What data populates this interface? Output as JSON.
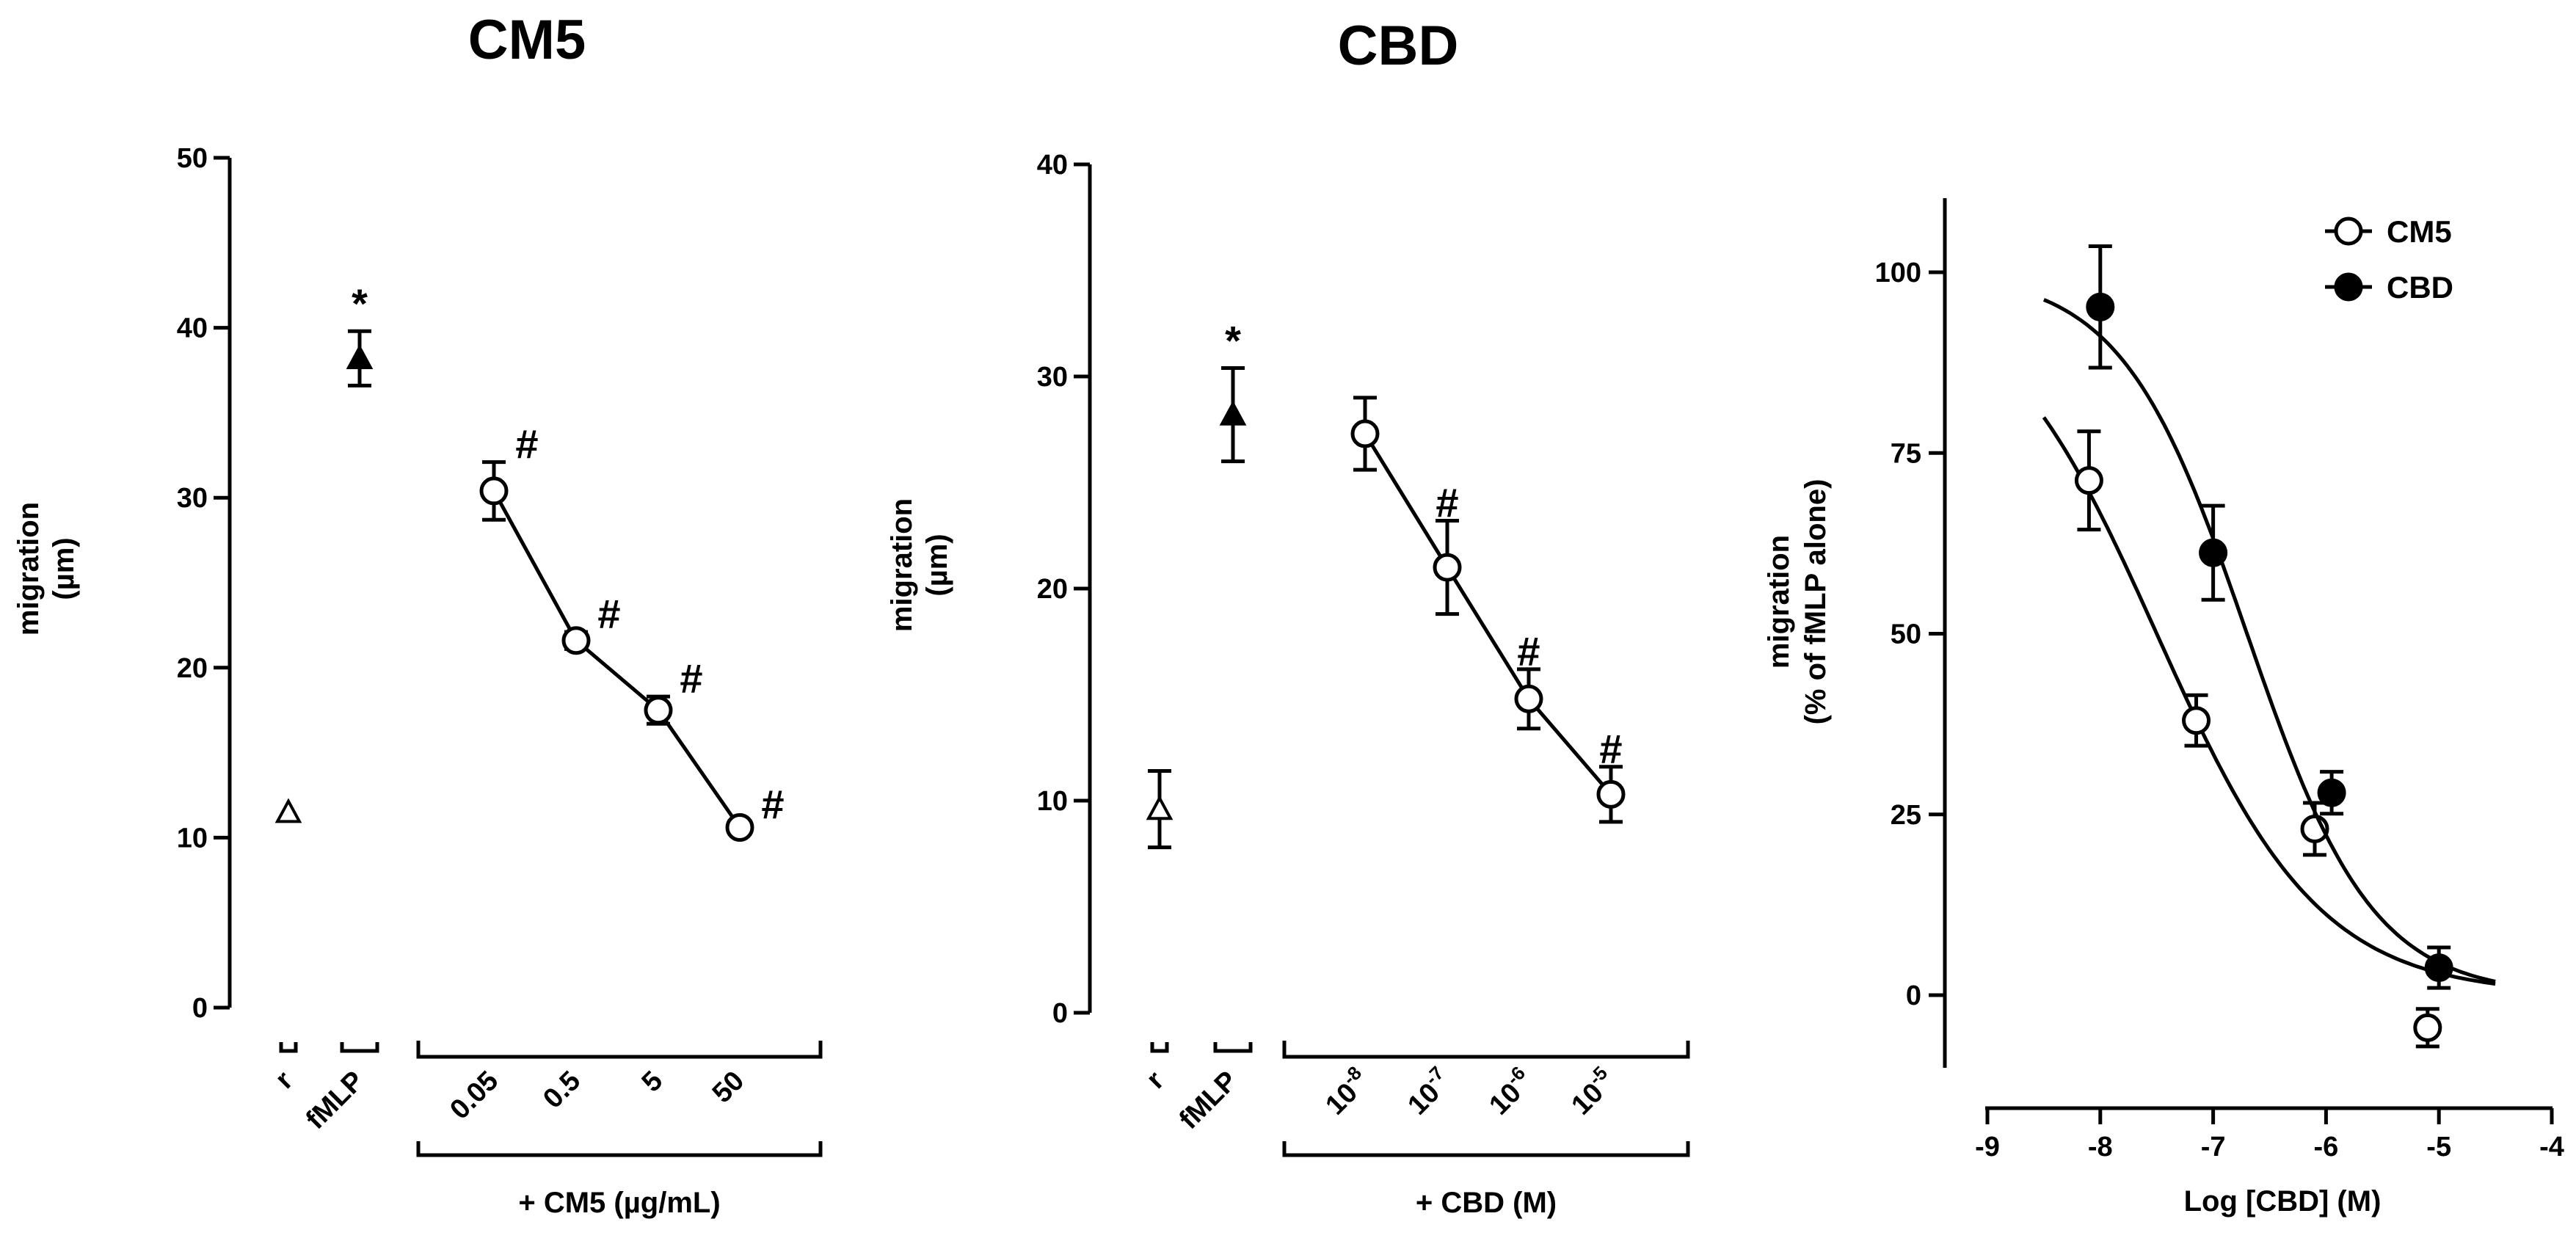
{
  "chart_data": [
    {
      "type": "scatter",
      "title": "CM5",
      "ylabel": "migration",
      "ylabel_unit": "(µm)",
      "ylim": [
        0,
        50
      ],
      "yticks": [
        0,
        10,
        20,
        30,
        40,
        50
      ],
      "categories": [
        "r",
        "fMLP",
        "0.05",
        "0.5",
        "5",
        "50"
      ],
      "group_label": "+ CM5 (µg/mL)",
      "points": [
        {
          "category": "r",
          "value": 11.5,
          "error": 0,
          "marker": "open-triangle"
        },
        {
          "category": "fMLP",
          "value": 38.2,
          "error": 1.6,
          "marker": "filled-triangle",
          "annotation": "*"
        },
        {
          "category": "0.05",
          "value": 30.4,
          "error": 1.7,
          "marker": "open-circle",
          "annotation": "#"
        },
        {
          "category": "0.5",
          "value": 21.6,
          "error": 0.5,
          "marker": "open-circle",
          "annotation": "#"
        },
        {
          "category": "5",
          "value": 17.5,
          "error": 0.8,
          "marker": "open-circle",
          "annotation": "#"
        },
        {
          "category": "50",
          "value": 10.6,
          "error": 0.3,
          "marker": "open-circle",
          "annotation": "#"
        }
      ],
      "line_connects": [
        "0.05",
        "0.5",
        "5",
        "50"
      ]
    },
    {
      "type": "scatter",
      "title": "CBD",
      "ylabel": "migration",
      "ylabel_unit": "(µm)",
      "ylim": [
        0,
        40
      ],
      "yticks": [
        0,
        10,
        20,
        30,
        40
      ],
      "categories": [
        "r",
        "fMLP",
        "10-8",
        "10-7",
        "10-6",
        "10-5"
      ],
      "category_display": [
        {
          "base": "r",
          "exp": ""
        },
        {
          "base": "fMLP",
          "exp": ""
        },
        {
          "base": "10",
          "exp": "-8"
        },
        {
          "base": "10",
          "exp": "-7"
        },
        {
          "base": "10",
          "exp": "-6"
        },
        {
          "base": "10",
          "exp": "-5"
        }
      ],
      "group_label": "+ CBD (M)",
      "points": [
        {
          "category": "r",
          "value": 9.6,
          "error": 1.8,
          "marker": "open-triangle"
        },
        {
          "category": "fMLP",
          "value": 28.2,
          "error": 2.2,
          "marker": "filled-triangle",
          "annotation": "*"
        },
        {
          "category": "10-8",
          "value": 27.3,
          "error": 1.7,
          "marker": "open-circle"
        },
        {
          "category": "10-7",
          "value": 21.0,
          "error": 2.2,
          "marker": "open-circle",
          "annotation": "#"
        },
        {
          "category": "10-6",
          "value": 14.8,
          "error": 1.4,
          "marker": "open-circle",
          "annotation": "#"
        },
        {
          "category": "10-5",
          "value": 10.3,
          "error": 1.3,
          "marker": "open-circle",
          "annotation": "#"
        }
      ],
      "line_connects": [
        "10-8",
        "10-7",
        "10-6",
        "10-5"
      ]
    },
    {
      "type": "line",
      "title": "",
      "xlabel": "Log [CBD] (M)",
      "ylabel": "migration",
      "ylabel_unit": "(% of fMLP alone)",
      "xlim": [
        -9,
        -4
      ],
      "ylim": [
        -10,
        110
      ],
      "xticks": [
        -9,
        -8,
        -7,
        -6,
        -5,
        -4
      ],
      "yticks": [
        0,
        25,
        50,
        75,
        100
      ],
      "legend": "top-right",
      "series": [
        {
          "name": "CM5",
          "marker": "open-circle",
          "x": [
            -8.1,
            -7.15,
            -6.1,
            -5.1
          ],
          "y": [
            71.2,
            38.0,
            23.0,
            -4.5
          ],
          "err": [
            6.8,
            3.5,
            3.6,
            2.6
          ],
          "fit": {
            "top": 100,
            "bottom": 0,
            "logIC50": -7.5,
            "hill": -0.6,
            "x_range": [
              -8.5,
              -4.5
            ]
          }
        },
        {
          "name": "CBD",
          "marker": "filled-circle",
          "x": [
            -8.0,
            -7.0,
            -5.95,
            -5.0
          ],
          "y": [
            95.2,
            61.2,
            28.0,
            3.8
          ],
          "err": [
            8.4,
            6.5,
            2.9,
            2.8
          ],
          "fit": {
            "top": 100,
            "bottom": 0,
            "logIC50": -6.7,
            "hill": -0.78,
            "x_range": [
              -8.5,
              -4.5
            ]
          }
        }
      ]
    }
  ]
}
